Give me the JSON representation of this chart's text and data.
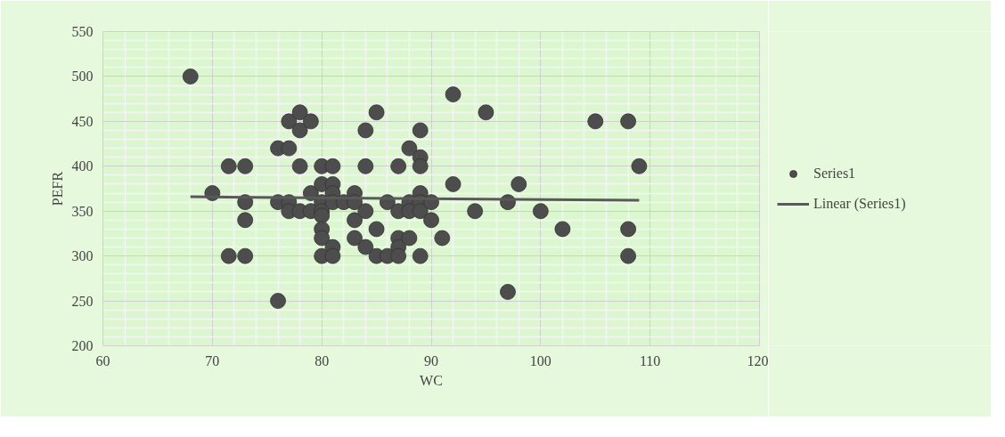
{
  "chart_data": {
    "type": "scatter",
    "xlabel": "WC",
    "ylabel": "PEFR",
    "xlim": [
      60,
      120
    ],
    "xticks": [
      60,
      70,
      80,
      90,
      100,
      110,
      120
    ],
    "ylim": [
      200,
      550
    ],
    "yticks": [
      200,
      250,
      300,
      350,
      400,
      450,
      500,
      550
    ],
    "grid": true,
    "legend": "right",
    "marker": "circle",
    "series": [
      {
        "name": "Series1",
        "color": "#4d4d4d",
        "x": [
          68,
          70,
          71.5,
          73,
          71.5,
          73,
          73,
          73,
          76,
          77,
          77,
          78,
          78,
          79,
          76,
          77,
          77,
          78,
          78,
          79,
          79,
          80,
          80,
          80,
          80,
          80,
          80,
          80,
          80,
          81,
          81,
          81,
          81,
          81,
          81,
          82,
          83,
          83,
          83,
          83,
          84,
          84,
          84,
          84,
          85,
          85,
          85,
          86,
          86,
          87,
          87,
          87,
          87,
          87,
          88,
          88,
          88,
          88,
          89,
          89,
          89,
          89,
          89,
          89,
          89,
          90,
          90,
          91,
          92,
          92,
          94,
          95,
          97,
          97,
          98,
          100,
          102,
          105,
          108,
          108,
          108,
          109,
          76
        ],
        "values": [
          500,
          370,
          400,
          400,
          300,
          300,
          360,
          340,
          420,
          420,
          450,
          460,
          440,
          450,
          360,
          360,
          350,
          350,
          400,
          370,
          350,
          400,
          380,
          360,
          350,
          345,
          330,
          320,
          300,
          400,
          380,
          370,
          360,
          310,
          300,
          360,
          370,
          360,
          340,
          320,
          440,
          400,
          350,
          310,
          460,
          330,
          300,
          360,
          300,
          400,
          350,
          320,
          310,
          300,
          420,
          360,
          350,
          320,
          440,
          410,
          400,
          370,
          360,
          350,
          300,
          360,
          340,
          320,
          480,
          380,
          350,
          460,
          360,
          260,
          380,
          350,
          330,
          450,
          450,
          330,
          300,
          400,
          250
        ]
      },
      {
        "name": "Linear (Series1)",
        "type": "line",
        "color": "#595959",
        "marker": "none",
        "x": [
          68,
          109
        ],
        "values": [
          366,
          362
        ]
      }
    ]
  }
}
